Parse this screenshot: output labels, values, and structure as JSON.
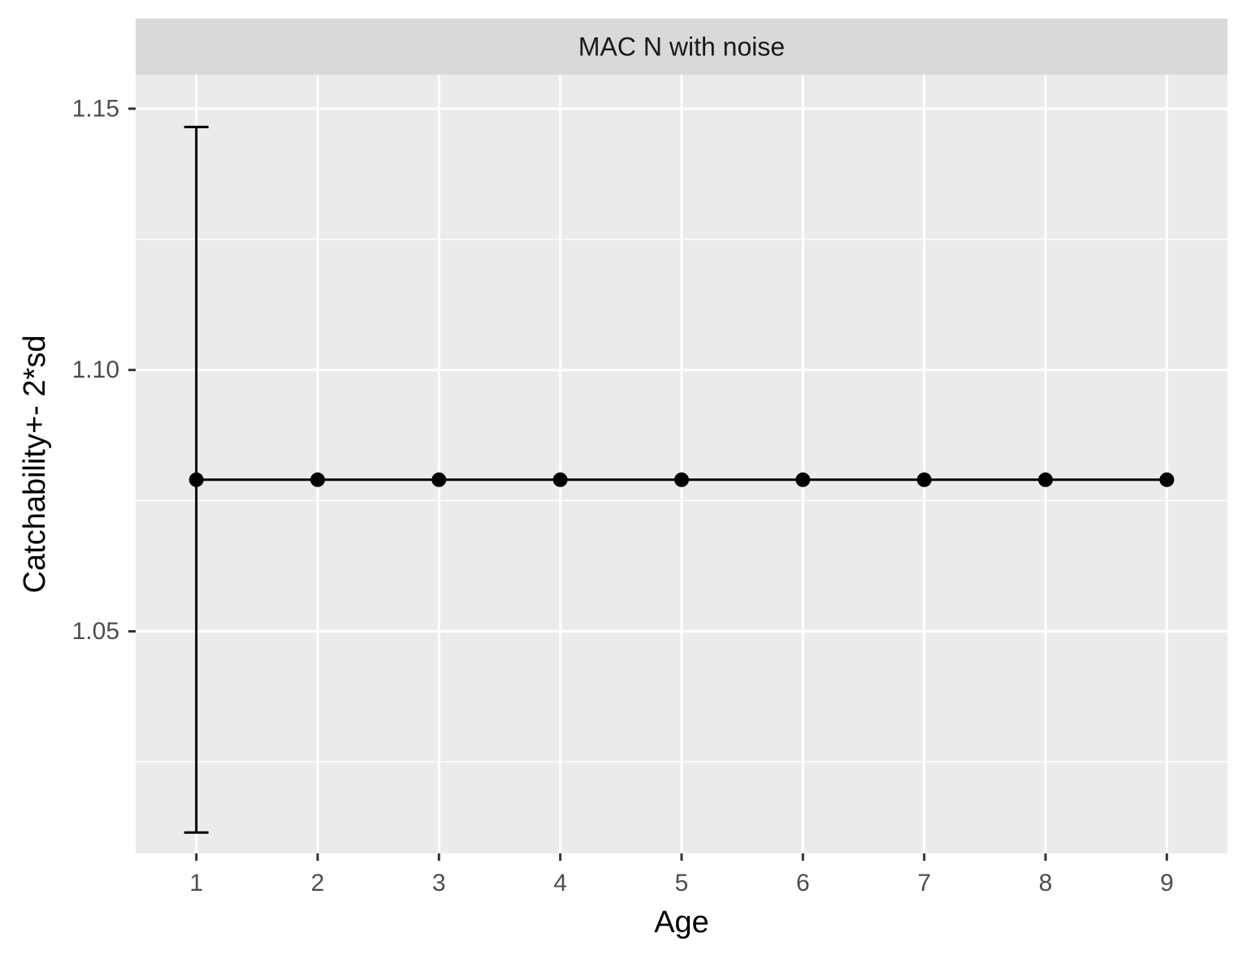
{
  "chart_data": {
    "type": "line",
    "facet_label": "MAC N with noise",
    "xlabel": "Age",
    "ylabel": "Catchability+- 2*sd",
    "x": [
      1,
      2,
      3,
      4,
      5,
      6,
      7,
      8,
      9
    ],
    "series": [
      {
        "values": [
          1.079,
          1.079,
          1.079,
          1.079,
          1.079,
          1.079,
          1.079,
          1.079,
          1.079
        ]
      }
    ],
    "error_bars": [
      {
        "x": 1,
        "ymin": 1.0115,
        "ymax": 1.1465
      }
    ],
    "xlim": [
      0.5,
      9.5
    ],
    "ylim": [
      1.0075,
      1.1565
    ],
    "x_ticks": [
      "1",
      "2",
      "3",
      "4",
      "5",
      "6",
      "7",
      "8",
      "9"
    ],
    "y_ticks": [
      {
        "value": 1.05,
        "label": "1.05"
      },
      {
        "value": 1.1,
        "label": "1.10"
      },
      {
        "value": 1.15,
        "label": "1.15"
      }
    ],
    "y_minor_gridlines": [
      1.025,
      1.075,
      1.125
    ],
    "grid": true,
    "colors": {
      "panel_background": "#ebebeb",
      "strip_background": "#d9d9d9",
      "gridline": "#ffffff",
      "series": "#000000",
      "tick_text": "#4d4d4d",
      "axis_tick": "#333333"
    }
  }
}
